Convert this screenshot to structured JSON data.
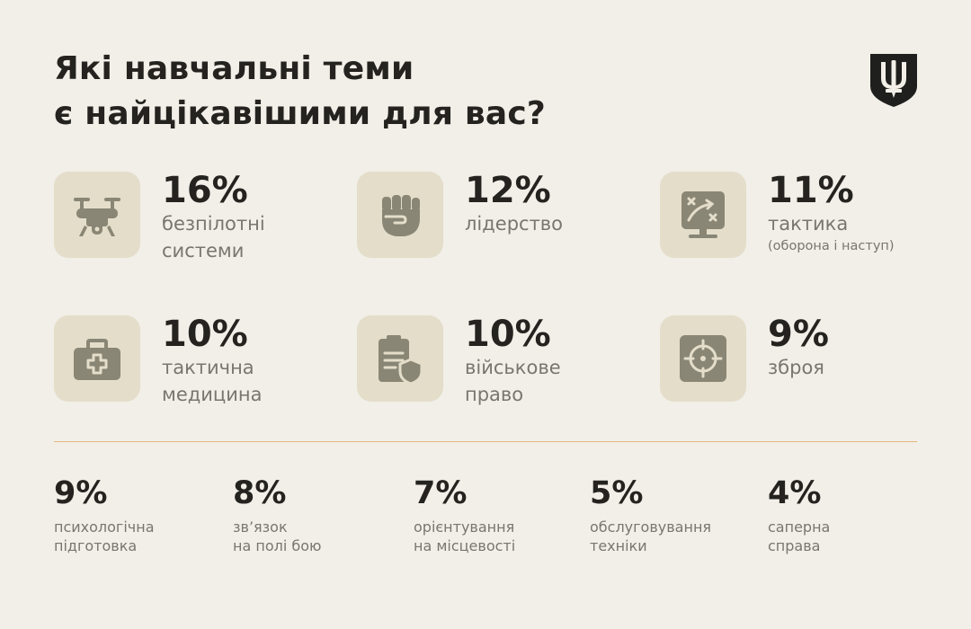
{
  "title": {
    "line1": "Які навчальні теми",
    "line2": "є найцікавішими для вас?"
  },
  "emblem": {
    "icon": "trident-shield-icon",
    "color": "#1f1f1d"
  },
  "colors": {
    "background": "#f2efe8",
    "tile": "#e3ddca",
    "icon": "#8a8675",
    "divider": "#e4b77f"
  },
  "top_items": [
    {
      "percent": "16%",
      "value": 16,
      "label1": "безпілотні",
      "label2": "системи",
      "icon": "drone-icon"
    },
    {
      "percent": "12%",
      "value": 12,
      "label1": "лідерство",
      "label2": "",
      "icon": "fist-icon"
    },
    {
      "percent": "11%",
      "value": 11,
      "label1": "тактика",
      "label2": "(оборона і наступ)",
      "icon": "tactics-board-icon"
    },
    {
      "percent": "10%",
      "value": 10,
      "label1": "тактична",
      "label2": "медицина",
      "icon": "medical-kit-icon"
    },
    {
      "percent": "10%",
      "value": 10,
      "label1": "військове",
      "label2": "право",
      "icon": "law-document-shield-icon"
    },
    {
      "percent": "9%",
      "value": 9,
      "label1": "зброя",
      "label2": "",
      "icon": "crosshair-icon"
    }
  ],
  "bottom_items": [
    {
      "percent": "9%",
      "value": 9,
      "label1": "психологічна",
      "label2": "підготовка"
    },
    {
      "percent": "8%",
      "value": 8,
      "label1": "зв’язок",
      "label2": "на полі бою"
    },
    {
      "percent": "7%",
      "value": 7,
      "label1": "орієнтування",
      "label2": "на місцевості"
    },
    {
      "percent": "5%",
      "value": 5,
      "label1": "обслуговування",
      "label2": "техніки"
    },
    {
      "percent": "4%",
      "value": 4,
      "label1": "саперна",
      "label2": "справа"
    }
  ]
}
